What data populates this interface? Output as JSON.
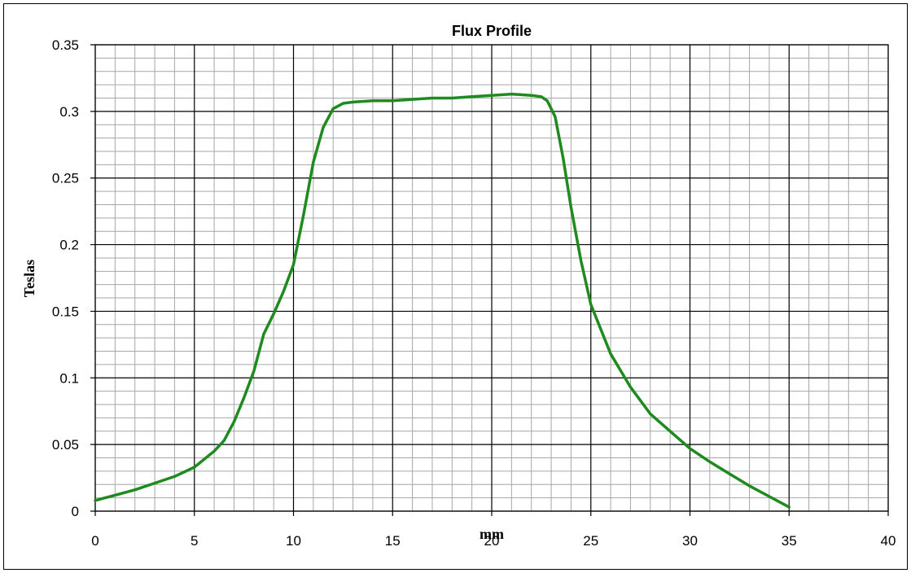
{
  "chart_data": {
    "type": "line",
    "title": "Flux Profile",
    "xlabel": "mm",
    "ylabel": "Teslas",
    "xlim": [
      0,
      40
    ],
    "ylim": [
      0,
      0.35
    ],
    "x_ticks": [
      "0",
      "5",
      "10",
      "15",
      "20",
      "25",
      "30",
      "35",
      "40"
    ],
    "y_ticks": [
      "0",
      "0.05",
      "0.1",
      "0.15",
      "0.2",
      "0.25",
      "0.3",
      "0.35"
    ],
    "grid": {
      "major": true,
      "minor": true
    },
    "legend": "none",
    "colors": {
      "line": "#1f8a1f",
      "major_grid": "#000000",
      "minor_grid": "#a6a6a6"
    },
    "series": [
      {
        "x": [
          0,
          1,
          2,
          3,
          4,
          5,
          6,
          6.5,
          7,
          7.5,
          8,
          8.5,
          9,
          9.5,
          10,
          10.5,
          11,
          11.5,
          12,
          12.5,
          13,
          14,
          15,
          16,
          17,
          18,
          19,
          20,
          21,
          22,
          22.5,
          22.8,
          23.2,
          23.6,
          24,
          24.5,
          25,
          26,
          27,
          28,
          29,
          30,
          31,
          32,
          33,
          34,
          35
        ],
        "y": [
          0.008,
          0.012,
          0.016,
          0.021,
          0.026,
          0.033,
          0.045,
          0.053,
          0.067,
          0.085,
          0.105,
          0.133,
          0.148,
          0.165,
          0.185,
          0.222,
          0.262,
          0.288,
          0.302,
          0.306,
          0.307,
          0.308,
          0.308,
          0.309,
          0.31,
          0.31,
          0.311,
          0.312,
          0.313,
          0.312,
          0.311,
          0.308,
          0.296,
          0.265,
          0.228,
          0.188,
          0.155,
          0.118,
          0.093,
          0.073,
          0.06,
          0.047,
          0.037,
          0.028,
          0.019,
          0.011,
          0.003
        ]
      }
    ]
  }
}
